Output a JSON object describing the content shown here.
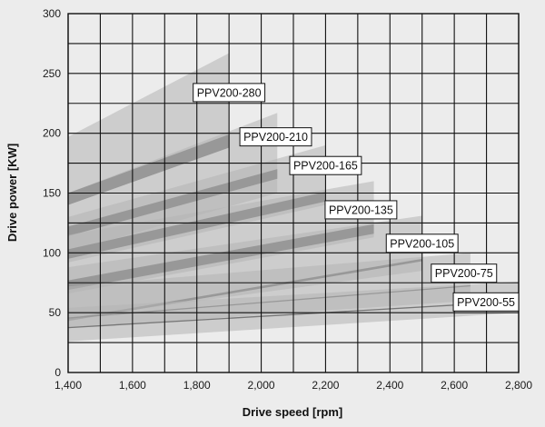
{
  "chart_data": {
    "type": "area",
    "xlabel": "Drive speed [rpm]",
    "ylabel": "Drive power [KW]",
    "xlim": [
      1400,
      2800
    ],
    "ylim": [
      0,
      300
    ],
    "x_ticks": [
      1400,
      1600,
      1800,
      2000,
      2200,
      2400,
      2600,
      2800
    ],
    "x_tick_labels": [
      "1,400",
      "1,600",
      "1,800",
      "2,000",
      "2,200",
      "2,400",
      "2,600",
      "2,800"
    ],
    "y_ticks": [
      0,
      50,
      100,
      150,
      200,
      250,
      300
    ],
    "y_tick_labels": [
      "0",
      "50",
      "100",
      "150",
      "200",
      "250",
      "300"
    ],
    "x_grid": [
      1400,
      1500,
      1600,
      1700,
      1800,
      1900,
      2000,
      2100,
      2200,
      2300,
      2400,
      2500,
      2600,
      2700,
      2800
    ],
    "y_grid": [
      0,
      25,
      50,
      75,
      100,
      125,
      150,
      175,
      200,
      225,
      250,
      275,
      300
    ],
    "grid": true,
    "legend": "none",
    "series": [
      {
        "name": "PPV200-280",
        "x_start": 1400,
        "x_end": 1900,
        "upper": [
          197,
          267
        ],
        "lower": [
          140,
          188
        ],
        "band_upper": [
          150,
          199
        ],
        "band_lower": [
          140,
          188
        ]
      },
      {
        "name": "PPV200-210",
        "x_start": 1400,
        "x_end": 2050,
        "upper": [
          150,
          217
        ],
        "lower": [
          101,
          150
        ],
        "band_upper": [
          122,
          170
        ],
        "band_lower": [
          114,
          162
        ]
      },
      {
        "name": "PPV200-165",
        "x_start": 1400,
        "x_end": 2200,
        "upper": [
          130,
          190
        ],
        "lower": [
          92,
          140
        ],
        "band_upper": [
          103,
          151
        ],
        "band_lower": [
          95,
          143
        ]
      },
      {
        "name": "PPV200-135",
        "x_start": 1400,
        "x_end": 2350,
        "upper": [
          115,
          160
        ],
        "lower": [
          66,
          113
        ],
        "band_upper": [
          77,
          124
        ],
        "band_lower": [
          69,
          116
        ]
      },
      {
        "name": "PPV200-105",
        "x_start": 1400,
        "x_end": 2500,
        "upper": [
          88,
          131
        ],
        "lower": [
          45,
          85
        ],
        "band_upper": [
          45,
          95
        ],
        "band_lower": [
          43,
          93
        ]
      },
      {
        "name": "PPV200-75",
        "x_start": 1400,
        "x_end": 2650,
        "upper": [
          72,
          100
        ],
        "lower": [
          37,
          60
        ],
        "band_upper": [
          46,
          73
        ],
        "band_lower": [
          45,
          72
        ]
      },
      {
        "name": "PPV200-55",
        "x_start": 1400,
        "x_end": 2800,
        "upper": [
          54,
          76
        ],
        "lower": [
          26,
          50
        ],
        "band_upper": [
          38,
          60
        ],
        "band_lower": [
          37,
          59
        ]
      }
    ],
    "annotations": [
      {
        "text": "PPV200-280",
        "x": 1900,
        "y": 234
      },
      {
        "text": "PPV200-210",
        "x": 2045,
        "y": 197
      },
      {
        "text": "PPV200-165",
        "x": 2200,
        "y": 173
      },
      {
        "text": "PPV200-135",
        "x": 2310,
        "y": 136
      },
      {
        "text": "PPV200-105",
        "x": 2500,
        "y": 108
      },
      {
        "text": "PPV200-75",
        "x": 2630,
        "y": 83
      },
      {
        "text": "PPV200-55",
        "x": 2720,
        "y": 59
      }
    ]
  },
  "colors": {
    "background": "#ececec",
    "plot_fill": "#ececec",
    "grid": "#111111",
    "area": "#b5b5b5",
    "area_opacity": 0.55,
    "band": "#6e6e6e",
    "band_opacity": 0.9,
    "label_box": "#ffffff"
  }
}
